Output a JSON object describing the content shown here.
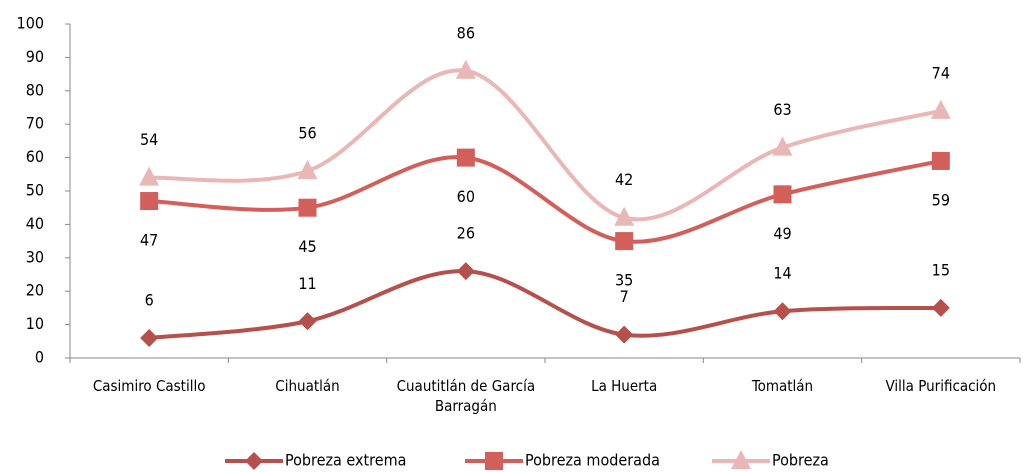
{
  "chart_data": {
    "type": "line",
    "categories": [
      "Casimiro Castillo",
      "Cihuatlán",
      "Cuautitlán de García Barragán",
      "La Huerta",
      "Tomatlán",
      "Villa Purificación"
    ],
    "series": [
      {
        "name": "Pobreza extrema",
        "color": "#b5504c",
        "marker": "diamond",
        "values": [
          6,
          11,
          26,
          7,
          14,
          15
        ]
      },
      {
        "name": "Pobreza moderada",
        "color": "#d35f5a",
        "marker": "square",
        "values": [
          47,
          45,
          60,
          35,
          49,
          59
        ]
      },
      {
        "name": "Pobreza",
        "color": "#e8b7b6",
        "marker": "triangle",
        "values": [
          54,
          56,
          86,
          42,
          63,
          74
        ]
      }
    ],
    "ylim": [
      0,
      100
    ],
    "yticks": [
      0,
      10,
      20,
      30,
      40,
      50,
      60,
      70,
      80,
      90,
      100
    ],
    "smooth": true,
    "legend": "bottom"
  }
}
